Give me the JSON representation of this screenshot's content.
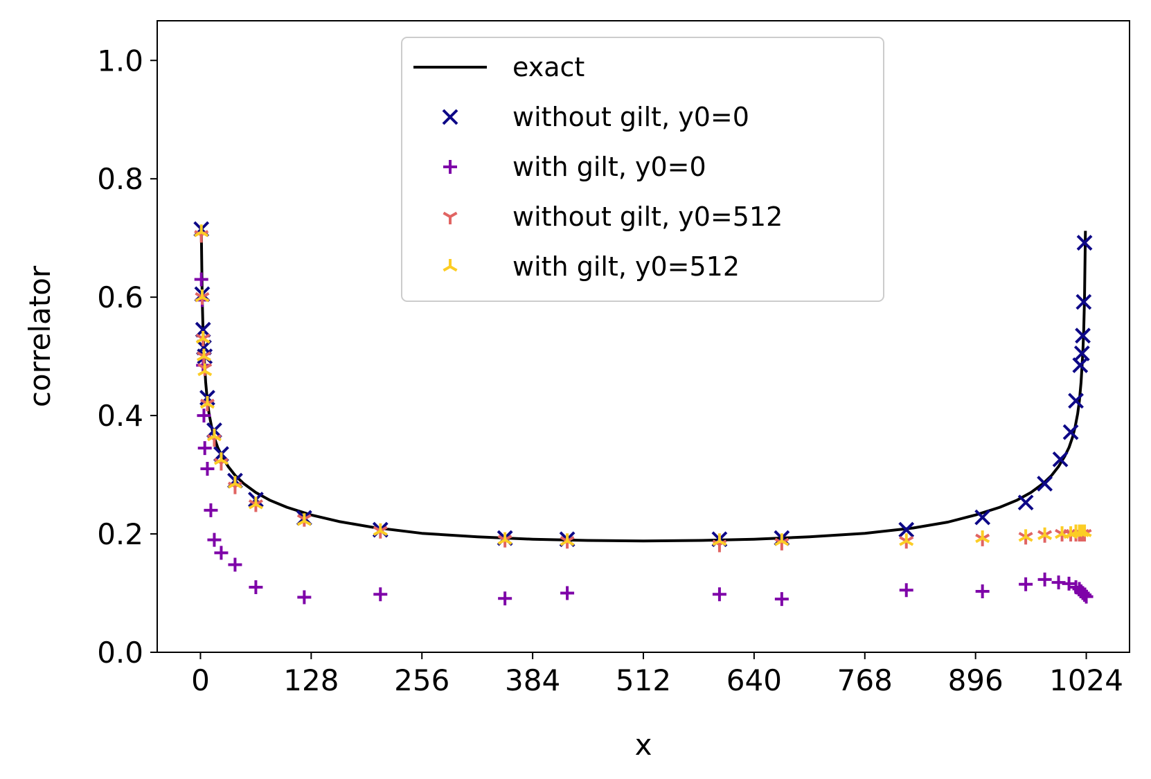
{
  "chart_data": {
    "type": "scatter",
    "xlabel": "x",
    "ylabel": "correlator",
    "xlim": [
      -50,
      1074
    ],
    "ylim": [
      0.0,
      1.067
    ],
    "xticks": [
      0,
      128,
      256,
      384,
      512,
      640,
      768,
      896,
      1024
    ],
    "yticks": [
      0.0,
      0.2,
      0.4,
      0.6,
      0.8,
      1.0
    ],
    "ytick_labels": [
      "0.0",
      "0.2",
      "0.4",
      "0.6",
      "0.8",
      "1.0"
    ],
    "legend_placement": "upper center",
    "grid": false,
    "series": [
      {
        "name": "exact",
        "kind": "line",
        "color": "#000000",
        "x": [
          1,
          2,
          3,
          4,
          6,
          8,
          10,
          13,
          16,
          20,
          25,
          32,
          40,
          50,
          64,
          80,
          100,
          128,
          160,
          200,
          256,
          320,
          384,
          448,
          512,
          576,
          640,
          704,
          768,
          824,
          864,
          896,
          924,
          944,
          960,
          974,
          984,
          992,
          999,
          1004,
          1008,
          1011,
          1014,
          1016,
          1018,
          1020,
          1021,
          1022,
          1023
        ],
        "y": [
          0.712,
          0.598,
          0.542,
          0.505,
          0.456,
          0.425,
          0.403,
          0.38,
          0.363,
          0.346,
          0.331,
          0.314,
          0.299,
          0.285,
          0.27,
          0.257,
          0.245,
          0.232,
          0.221,
          0.211,
          0.201,
          0.195,
          0.191,
          0.189,
          0.188,
          0.189,
          0.191,
          0.195,
          0.201,
          0.21,
          0.22,
          0.232,
          0.245,
          0.257,
          0.27,
          0.285,
          0.299,
          0.314,
          0.331,
          0.346,
          0.363,
          0.38,
          0.403,
          0.425,
          0.456,
          0.505,
          0.542,
          0.598,
          0.712
        ]
      },
      {
        "name": "without gilt, y0=0",
        "kind": "scatter",
        "marker": "x",
        "color": "#0d0887",
        "x": [
          1,
          2,
          3,
          4,
          5,
          8,
          16,
          24,
          40,
          64,
          120,
          208,
          352,
          424,
          600,
          672,
          816,
          904,
          954,
          976,
          994,
          1006,
          1012,
          1017,
          1019,
          1020,
          1021,
          1022
        ],
        "y": [
          0.715,
          0.605,
          0.545,
          0.515,
          0.5,
          0.43,
          0.375,
          0.335,
          0.29,
          0.258,
          0.227,
          0.207,
          0.193,
          0.191,
          0.191,
          0.193,
          0.207,
          0.228,
          0.253,
          0.285,
          0.326,
          0.372,
          0.425,
          0.485,
          0.505,
          0.535,
          0.592,
          0.692
        ]
      },
      {
        "name": "with gilt, y0=0",
        "kind": "scatter",
        "marker": "+",
        "color": "#7e03a8",
        "x": [
          1,
          2,
          3,
          4,
          5,
          8,
          12,
          16,
          24,
          40,
          64,
          120,
          208,
          352,
          424,
          600,
          672,
          816,
          904,
          954,
          976,
          992,
          1004,
          1012,
          1016,
          1018,
          1020,
          1022,
          1024
        ],
        "y": [
          0.63,
          0.595,
          0.485,
          0.4,
          0.345,
          0.31,
          0.24,
          0.19,
          0.168,
          0.148,
          0.11,
          0.093,
          0.098,
          0.091,
          0.1,
          0.098,
          0.09,
          0.105,
          0.103,
          0.115,
          0.123,
          0.118,
          0.116,
          0.11,
          0.107,
          0.103,
          0.1,
          0.097,
          0.094
        ]
      },
      {
        "name": "without gilt, y0=512",
        "kind": "scatter",
        "marker": "tri_down",
        "color": "#e16462",
        "x": [
          1,
          2,
          3,
          4,
          5,
          8,
          16,
          24,
          40,
          64,
          120,
          208,
          352,
          424,
          600,
          672,
          816,
          904,
          954,
          976,
          996,
          1006,
          1012,
          1016,
          1019,
          1022
        ],
        "y": [
          0.705,
          0.6,
          0.53,
          0.5,
          0.48,
          0.42,
          0.36,
          0.32,
          0.28,
          0.25,
          0.225,
          0.205,
          0.19,
          0.188,
          0.182,
          0.185,
          0.188,
          0.192,
          0.195,
          0.198,
          0.2,
          0.2,
          0.2,
          0.2,
          0.2,
          0.2
        ]
      },
      {
        "name": "with gilt, y0=512",
        "kind": "scatter",
        "marker": "tri_up",
        "color": "#fccd25",
        "x": [
          1,
          2,
          3,
          4,
          5,
          8,
          16,
          24,
          40,
          64,
          120,
          208,
          352,
          424,
          600,
          672,
          816,
          904,
          954,
          976,
          996,
          1006,
          1012,
          1016,
          1019,
          1022
        ],
        "y": [
          0.71,
          0.6,
          0.53,
          0.5,
          0.475,
          0.42,
          0.365,
          0.325,
          0.285,
          0.25,
          0.222,
          0.205,
          0.19,
          0.188,
          0.188,
          0.188,
          0.188,
          0.193,
          0.195,
          0.198,
          0.2,
          0.2,
          0.203,
          0.203,
          0.203,
          0.203
        ]
      }
    ]
  }
}
